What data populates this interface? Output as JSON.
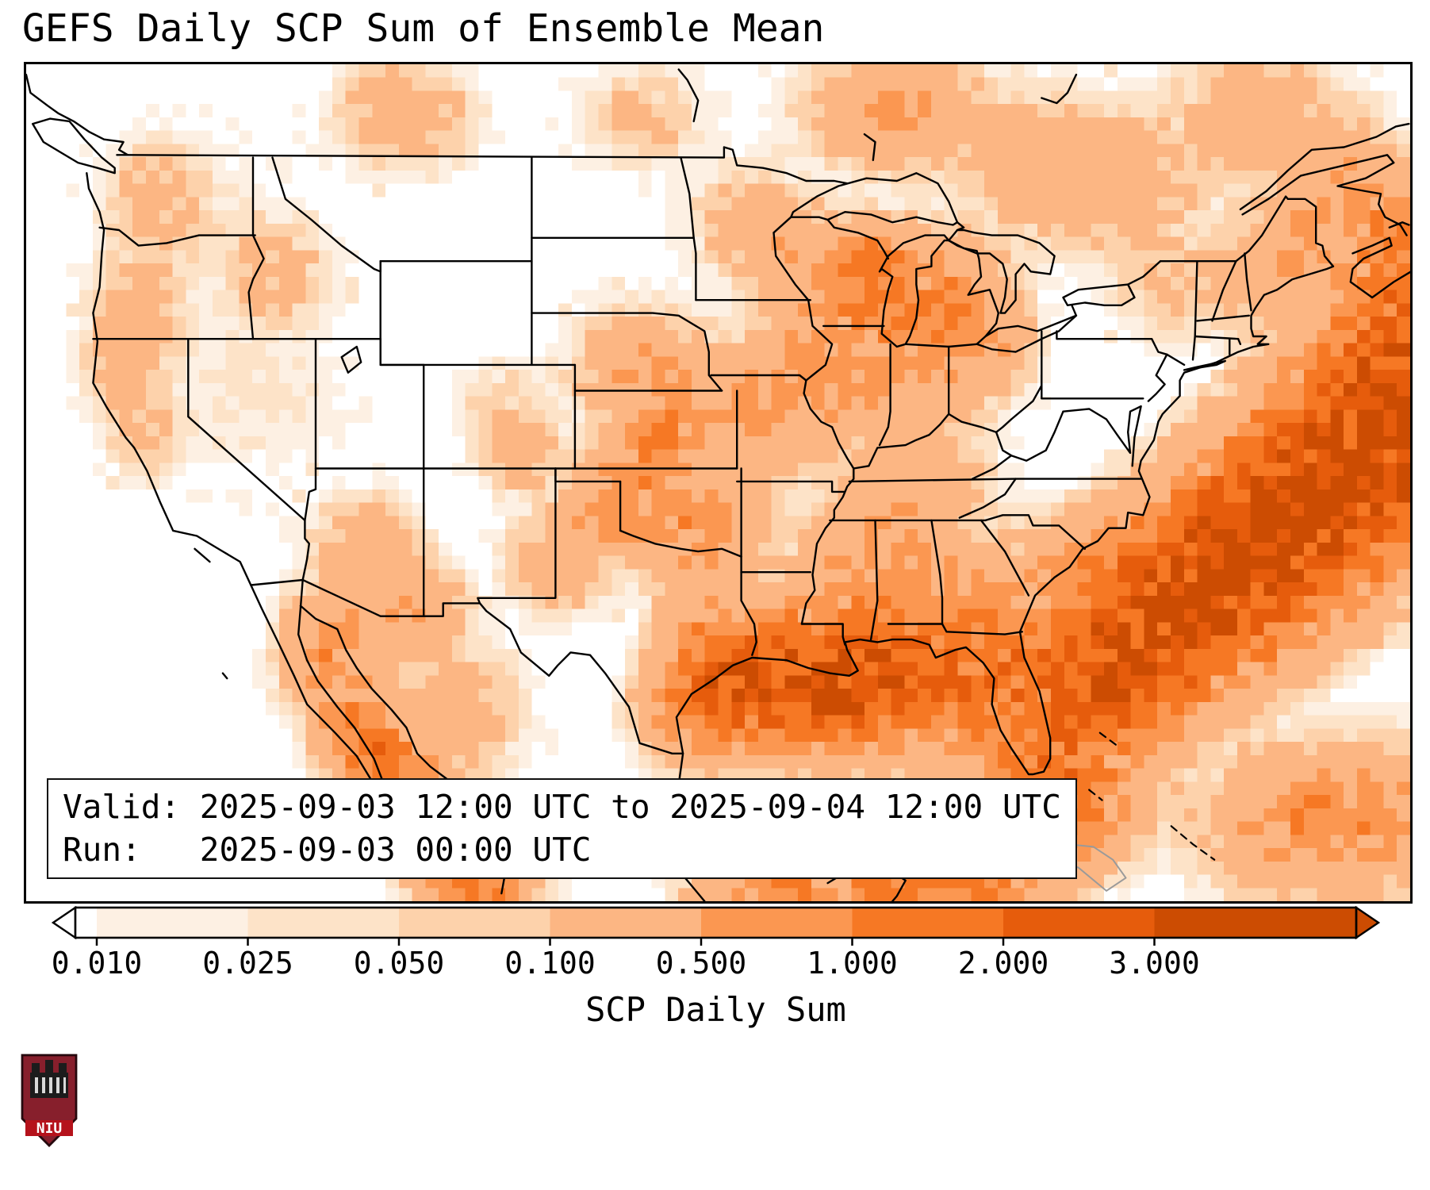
{
  "title": "GEFS Daily SCP Sum of Ensemble Mean",
  "info_box": {
    "valid_line": "Valid: 2025-09-03 12:00 UTC to 2025-09-04 12:00 UTC",
    "run_line": "Run:   2025-09-03 00:00 UTC"
  },
  "colorbar": {
    "label": "SCP Daily Sum",
    "ticks": [
      "0.010",
      "0.025",
      "0.050",
      "0.100",
      "0.500",
      "1.000",
      "2.000",
      "3.000"
    ],
    "interval_colors": [
      "#fdf0e3",
      "#fde3c8",
      "#fdd2ab",
      "#fcb683",
      "#fb9751",
      "#f67824",
      "#e65c0c"
    ],
    "under_color": "#ffffff",
    "over_color": "#cc4c02",
    "outline_color": "#000000"
  },
  "logo": {
    "name": "NIU",
    "text": "NIU",
    "shield_color": "#871f2c",
    "band_color": "#b5121b"
  },
  "chart_data": {
    "type": "heatmap",
    "title": "GEFS Daily SCP Sum of Ensemble Mean",
    "variable": "SCP Daily Sum",
    "valid": "2025-09-03 12:00 UTC to 2025-09-04 12:00 UTC",
    "run": "2025-09-03 00:00 UTC",
    "region": "CONUS and adjacent Canada / Mexico / western Atlantic",
    "levels": [
      0.01,
      0.025,
      0.05,
      0.1,
      0.5,
      1,
      2,
      3
    ],
    "colormap": "Oranges",
    "extend": "both",
    "grid": {
      "cols": 104,
      "rows": 63,
      "lon_min": -127.5,
      "lon_max": -63.44,
      "lat_min": 20.3,
      "lat_max": 52.6
    },
    "hotspots_format": [
      "lon",
      "lat",
      "sigma_lon_deg",
      "sigma_lat_deg",
      "peak_scp"
    ],
    "hotspots": [
      [
        -79.5,
        27,
        2,
        1.5,
        1.2
      ],
      [
        -77.5,
        29,
        2.2,
        1.6,
        1.8
      ],
      [
        -75,
        31,
        2.4,
        1.8,
        2.2
      ],
      [
        -72,
        33,
        2.6,
        1.9,
        2.5
      ],
      [
        -69,
        35,
        2.6,
        2,
        2.6
      ],
      [
        -66,
        37,
        2.6,
        2,
        2.4
      ],
      [
        -64,
        39.5,
        2.6,
        2.2,
        2.1
      ],
      [
        -63.5,
        43,
        2.2,
        2,
        1.2
      ],
      [
        -78.5,
        32.5,
        1.8,
        1.4,
        0.6
      ],
      [
        -67,
        23.5,
        3,
        1.5,
        0.9
      ],
      [
        -96.2,
        28,
        1.4,
        1.2,
        1.4
      ],
      [
        -93.5,
        28.6,
        1.8,
        1.2,
        1.8
      ],
      [
        -90.5,
        28.3,
        1.9,
        1.3,
        2
      ],
      [
        -87.5,
        28.8,
        1.8,
        1.3,
        1.6
      ],
      [
        -85,
        28.6,
        1.8,
        1.4,
        1.2
      ],
      [
        -95.5,
        30,
        1.2,
        1,
        0.9
      ],
      [
        -91.5,
        30.3,
        1.6,
        1.1,
        0.8
      ],
      [
        -88.5,
        30.5,
        1.5,
        1.1,
        0.7
      ],
      [
        -81.8,
        28.3,
        1.3,
        1.5,
        0.55
      ],
      [
        -83,
        30.2,
        1.4,
        1.1,
        0.7
      ],
      [
        -80,
        24,
        2,
        1.3,
        1.3
      ],
      [
        -84,
        21.8,
        2.2,
        1.4,
        1.4
      ],
      [
        -87.5,
        21.5,
        1.8,
        1.3,
        1.1
      ],
      [
        -92.5,
        20.8,
        2,
        1.2,
        0.9
      ],
      [
        -98.8,
        40.8,
        1.7,
        1.2,
        0.45
      ],
      [
        -97.5,
        38.7,
        1.6,
        1.2,
        0.5
      ],
      [
        -98.3,
        38.3,
        0.7,
        0.5,
        0.9
      ],
      [
        -93.5,
        39,
        1.7,
        1.3,
        0.5
      ],
      [
        -91.5,
        41.2,
        1.6,
        1.3,
        0.45
      ],
      [
        -89.3,
        40.3,
        1.5,
        1.2,
        0.4
      ],
      [
        -89.5,
        43.9,
        1.6,
        1.3,
        0.55
      ],
      [
        -87,
        43.3,
        1.5,
        1.5,
        0.6
      ],
      [
        -85.5,
        42.5,
        1.5,
        1.2,
        0.5
      ],
      [
        -88.3,
        44.9,
        1,
        0.8,
        0.8
      ],
      [
        -84.5,
        44,
        1.4,
        1.2,
        0.45
      ],
      [
        -83,
        41.8,
        1.2,
        1,
        0.45
      ],
      [
        -86,
        40,
        1.5,
        1.2,
        0.3
      ],
      [
        -95.5,
        34.8,
        1.4,
        1.1,
        0.5
      ],
      [
        -86.5,
        36.5,
        1.8,
        1.2,
        0.35
      ],
      [
        -89,
        33,
        1.6,
        1.4,
        0.5
      ],
      [
        -86.5,
        33.5,
        1.6,
        1.3,
        0.4
      ],
      [
        -83.5,
        32,
        1.5,
        1.2,
        0.5
      ],
      [
        -94,
        46.5,
        1.5,
        1.2,
        0.2
      ],
      [
        -92.3,
        45.6,
        1.2,
        1,
        0.3
      ],
      [
        -100.3,
        35.6,
        1.2,
        0.9,
        0.75
      ],
      [
        -98,
        35,
        1.4,
        1,
        0.5
      ],
      [
        -102.8,
        33.4,
        1.2,
        1,
        0.45
      ],
      [
        -99,
        37.2,
        1.2,
        0.9,
        0.5
      ],
      [
        -96,
        32.5,
        1.4,
        1.2,
        0.3
      ],
      [
        -104.5,
        37.5,
        1,
        0.8,
        0.25
      ],
      [
        -122.3,
        43,
        1.1,
        1.3,
        0.25
      ],
      [
        -123,
        41,
        0.9,
        0.9,
        0.3
      ],
      [
        -121.5,
        47.5,
        1.2,
        1.1,
        0.2
      ],
      [
        -115.8,
        44.5,
        1.3,
        1.2,
        0.18
      ],
      [
        -111.8,
        33.8,
        1.3,
        1.1,
        0.3
      ],
      [
        -109.5,
        31.5,
        1.3,
        1,
        0.4
      ],
      [
        -113,
        31,
        1.3,
        1,
        0.4
      ],
      [
        -117,
        40,
        2.5,
        2,
        0.035
      ],
      [
        -120,
        46.5,
        2.5,
        2,
        0.03
      ],
      [
        -122,
        38.5,
        1,
        1,
        0.15
      ],
      [
        -105.5,
        39.5,
        1.2,
        1,
        0.08
      ],
      [
        -114,
        29.5,
        1,
        1,
        0.5
      ],
      [
        -112.5,
        27.5,
        1,
        1.2,
        0.8
      ],
      [
        -110.8,
        25.5,
        1,
        1.2,
        1.1
      ],
      [
        -109.2,
        23.8,
        1,
        1.1,
        1.3
      ],
      [
        -107.6,
        22.2,
        1.1,
        1.1,
        1.2
      ],
      [
        -106.2,
        20.9,
        1.2,
        1,
        1.1
      ],
      [
        -111.8,
        25.8,
        0.7,
        1,
        0.5
      ],
      [
        -110.3,
        23.3,
        0.7,
        0.8,
        0.8
      ],
      [
        -107.5,
        27.5,
        1.5,
        1.5,
        0.25
      ],
      [
        -87,
        50.8,
        2.2,
        1.2,
        0.55
      ],
      [
        -80.5,
        48.5,
        1.8,
        1.5,
        0.3
      ],
      [
        -76.5,
        48,
        1.8,
        1.5,
        0.25
      ],
      [
        -66.5,
        47.8,
        1.6,
        1.4,
        0.5
      ],
      [
        -64,
        46.3,
        1.5,
        1.2,
        0.5
      ],
      [
        -70.5,
        50.5,
        2,
        1.5,
        0.3
      ],
      [
        -99,
        50.5,
        1.5,
        1,
        0.15
      ],
      [
        -110,
        50.7,
        1.6,
        1.1,
        0.3
      ],
      [
        -70.5,
        44.5,
        1.3,
        1.2,
        0.25
      ],
      [
        -68.5,
        45.8,
        1.2,
        1.1,
        0.35
      ],
      [
        -74.5,
        44,
        1.5,
        1.2,
        0.12
      ]
    ]
  }
}
